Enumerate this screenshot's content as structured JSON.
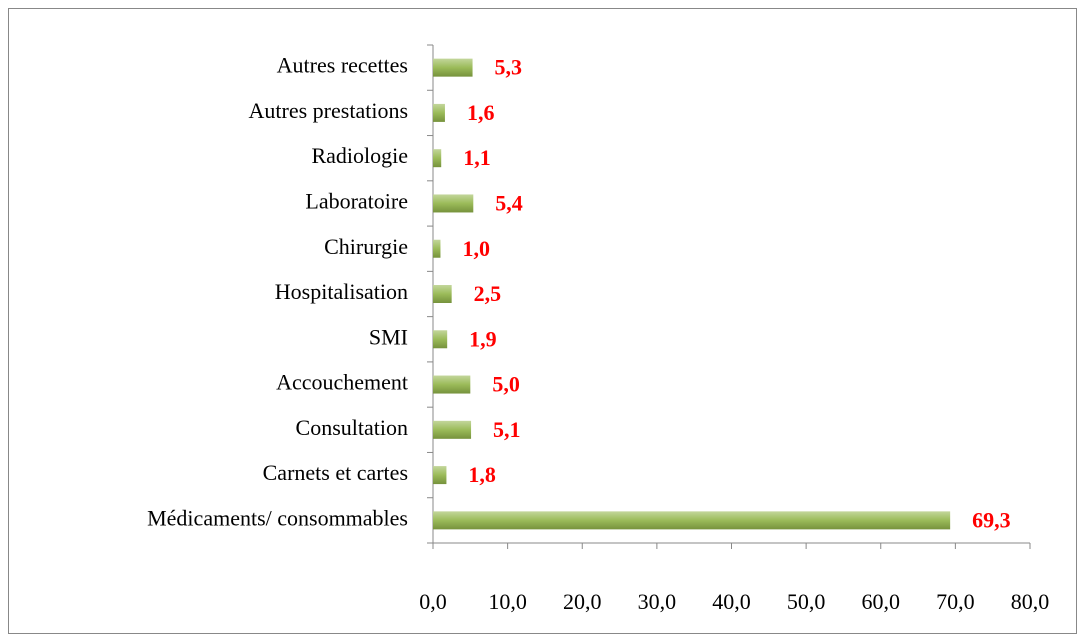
{
  "chart_data": {
    "type": "barh",
    "categories": [
      "Médicaments/ consommables",
      "Carnets et cartes",
      "Consultation",
      "Accouchement",
      "SMI",
      "Hospitalisation",
      "Chirurgie",
      "Laboratoire",
      "Radiologie",
      "Autres prestations",
      "Autres recettes"
    ],
    "values": [
      69.3,
      1.8,
      5.1,
      5.0,
      1.9,
      2.5,
      1.0,
      5.4,
      1.1,
      1.6,
      5.3
    ],
    "value_labels": [
      "69,3",
      "1,8",
      "5,1",
      "5,0",
      "1,9",
      "2,5",
      "1,0",
      "5,4",
      "1,1",
      "1,6",
      "5,3"
    ],
    "color": "#9bbb59",
    "xlim": [
      0,
      80
    ],
    "xticks": [
      {
        "value": 0,
        "label": "0,0"
      },
      {
        "value": 10,
        "label": "10,0"
      },
      {
        "value": 20,
        "label": "20,0"
      },
      {
        "value": 30,
        "label": "30,0"
      },
      {
        "value": 40,
        "label": "40,0"
      },
      {
        "value": 50,
        "label": "50,0"
      },
      {
        "value": 60,
        "label": "60,0"
      },
      {
        "value": 70,
        "label": "70,0"
      },
      {
        "value": 80,
        "label": "80,0"
      }
    ],
    "grid": false
  }
}
